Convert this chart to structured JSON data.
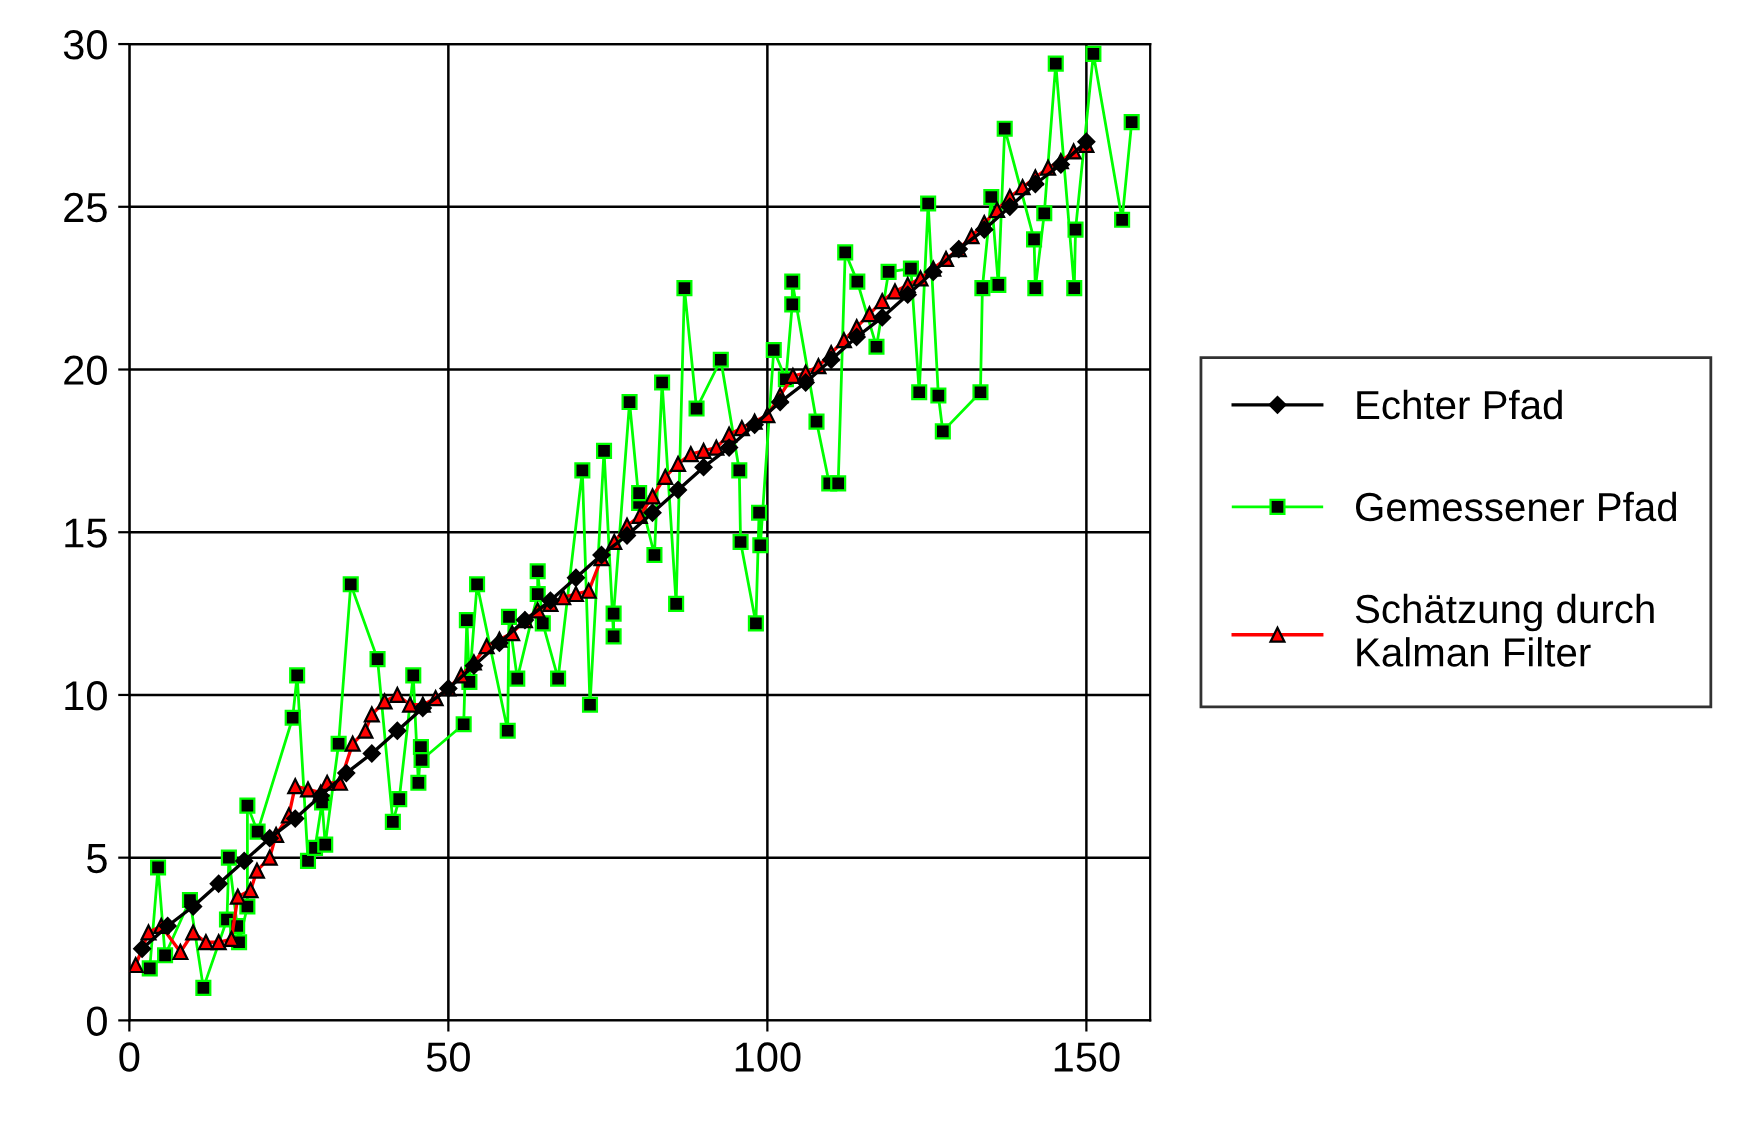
{
  "chart_data": {
    "type": "line",
    "xlim": [
      0,
      160
    ],
    "xticks": [
      0,
      50,
      100,
      150
    ],
    "ylim": [
      0,
      30
    ],
    "yticks": [
      0,
      5,
      10,
      15,
      20,
      25,
      30
    ],
    "grid": true,
    "legend": "right",
    "series": [
      {
        "name": "Echter Pfad",
        "color": "#000000",
        "marker": "diamond",
        "x": [
          2,
          6,
          10,
          14,
          18,
          22,
          26,
          30,
          34,
          38,
          42,
          46,
          50,
          54,
          58,
          62,
          66,
          70,
          74,
          78,
          82,
          86,
          90,
          94,
          98,
          102,
          106,
          110,
          114,
          118,
          122,
          126,
          130,
          134,
          138,
          142,
          146,
          150
        ],
        "values": [
          2.2,
          2.9,
          3.5,
          4.2,
          4.9,
          5.6,
          6.2,
          6.9,
          7.6,
          8.2,
          8.9,
          9.6,
          10.2,
          10.9,
          11.6,
          12.3,
          12.9,
          13.6,
          14.3,
          14.9,
          15.6,
          16.3,
          17.0,
          17.6,
          18.3,
          19.0,
          19.6,
          20.3,
          21.0,
          21.6,
          22.3,
          23.0,
          23.7,
          24.3,
          25.0,
          25.7,
          26.3,
          27.0
        ]
      },
      {
        "name": "Gemessener Pfad",
        "color": "#00ff00",
        "marker": "square",
        "x": [
          3.2,
          4.5,
          5.6,
          9.5,
          11.6,
          15.3,
          15.6,
          16.9,
          17.2,
          18.5,
          18.5,
          20.1,
          25.6,
          26.3,
          28.0,
          29.1,
          30.2,
          30.7,
          32.8,
          34.7,
          38.9,
          41.3,
          42.3,
          44.5,
          45.3,
          45.7,
          45.8,
          52.4,
          52.9,
          53.3,
          54.5,
          59.3,
          59.5,
          60.8,
          64.0,
          64.0,
          64.8,
          67.2,
          71.0,
          72.2,
          74.4,
          75.9,
          75.9,
          78.4,
          79.9,
          79.9,
          82.3,
          83.5,
          85.7,
          87.0,
          88.9,
          92.7,
          95.6,
          95.8,
          98.2,
          98.7,
          98.9,
          101.0,
          102.9,
          103.9,
          103.9,
          107.7,
          109.7,
          111.1,
          112.2,
          114.1,
          117.1,
          119.0,
          122.5,
          123.8,
          125.2,
          126.8,
          127.5,
          133.4,
          133.7,
          135.1,
          136.2,
          137.2,
          141.8,
          142.0,
          143.4,
          145.2,
          148.1,
          148.3,
          151.1,
          155.6,
          157.1
        ],
        "values": [
          1.6,
          4.7,
          2.0,
          3.7,
          1.0,
          3.1,
          5.0,
          2.9,
          2.4,
          3.5,
          6.6,
          5.8,
          9.3,
          10.6,
          4.9,
          5.3,
          6.7,
          5.4,
          8.5,
          13.4,
          11.1,
          6.1,
          6.8,
          10.6,
          7.3,
          8.4,
          8.0,
          9.1,
          12.3,
          10.4,
          13.4,
          8.9,
          12.4,
          10.5,
          13.1,
          13.8,
          12.2,
          10.5,
          16.9,
          9.7,
          17.5,
          11.8,
          12.5,
          19.0,
          15.9,
          16.2,
          14.3,
          19.6,
          12.8,
          22.5,
          18.8,
          20.3,
          16.9,
          14.7,
          12.2,
          15.6,
          14.6,
          20.6,
          19.7,
          22.0,
          22.7,
          18.4,
          16.5,
          16.5,
          23.6,
          22.7,
          20.7,
          23.0,
          23.1,
          19.3,
          25.1,
          19.2,
          18.1,
          19.3,
          22.5,
          25.3,
          22.6,
          27.4,
          24.0,
          22.5,
          24.8,
          29.4,
          22.5,
          24.3,
          29.7,
          24.6,
          27.6
        ]
      },
      {
        "name": "Schätzung durch\nKalman Filter",
        "color": "#ff0000",
        "marker": "triangle",
        "x": [
          1,
          3,
          5,
          8,
          10,
          12,
          14,
          16,
          17,
          19,
          20,
          22,
          23,
          25,
          26,
          28,
          30,
          31,
          33,
          35,
          37,
          38,
          40,
          42,
          44,
          46,
          48,
          50,
          52,
          54,
          56,
          58,
          60,
          62,
          64,
          66,
          68,
          70,
          72,
          74,
          76,
          78,
          80,
          82,
          84,
          86,
          88,
          90,
          92,
          94,
          96,
          98,
          100,
          102,
          104,
          106,
          108,
          110,
          112,
          114,
          116,
          118,
          120,
          122,
          124,
          126,
          128,
          130,
          132,
          134,
          136,
          138,
          140,
          142,
          144,
          146,
          148,
          150
        ],
        "values": [
          1.7,
          2.7,
          2.9,
          2.1,
          2.7,
          2.4,
          2.4,
          2.5,
          3.8,
          4.0,
          4.6,
          5.0,
          5.7,
          6.3,
          7.2,
          7.1,
          7.0,
          7.3,
          7.3,
          8.5,
          8.9,
          9.4,
          9.8,
          10.0,
          9.7,
          9.7,
          9.9,
          10.2,
          10.6,
          11.0,
          11.5,
          11.7,
          11.9,
          12.3,
          12.6,
          12.8,
          13.0,
          13.1,
          13.2,
          14.2,
          14.7,
          15.2,
          15.5,
          16.1,
          16.7,
          17.1,
          17.4,
          17.5,
          17.6,
          18.0,
          18.2,
          18.4,
          18.6,
          19.2,
          19.8,
          19.9,
          20.1,
          20.5,
          20.9,
          21.3,
          21.7,
          22.1,
          22.4,
          22.6,
          22.8,
          23.1,
          23.4,
          23.7,
          24.1,
          24.5,
          24.9,
          25.3,
          25.6,
          25.9,
          26.2,
          26.4,
          26.7,
          26.9
        ]
      }
    ]
  }
}
